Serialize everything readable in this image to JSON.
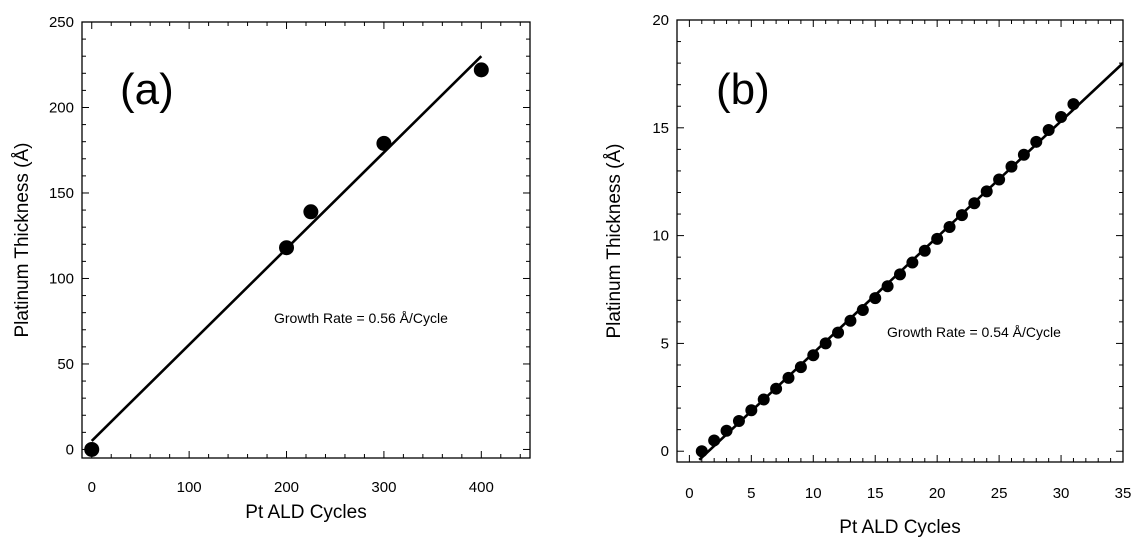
{
  "chart_data": [
    {
      "type": "scatter",
      "panel_label": "(a)",
      "xlabel": "Pt ALD Cycles",
      "ylabel": "Platinum Thickness (Å)",
      "annotation": "Growth Rate = 0.56 Å/Cycle",
      "xlim": [
        -10,
        450
      ],
      "ylim": [
        -5,
        250
      ],
      "xticks": [
        0,
        100,
        200,
        300,
        400
      ],
      "yticks": [
        0,
        50,
        100,
        150,
        200,
        250
      ],
      "grid": false,
      "series": [
        {
          "x": [
            0,
            200,
            225,
            300,
            400
          ],
          "y": [
            0,
            118,
            139,
            179,
            222
          ]
        }
      ],
      "fit_line": {
        "x": [
          0,
          400
        ],
        "y": [
          5,
          230
        ]
      }
    },
    {
      "type": "scatter",
      "panel_label": "(b)",
      "xlabel": "Pt ALD Cycles",
      "ylabel": "Platinum Thickness (Å)",
      "annotation": "Growth Rate = 0.54 Å/Cycle",
      "xlim": [
        -1,
        35
      ],
      "ylim": [
        -0.5,
        20
      ],
      "xticks": [
        0,
        5,
        10,
        15,
        20,
        25,
        30,
        35
      ],
      "yticks": [
        0,
        5,
        10,
        15,
        20
      ],
      "grid": false,
      "series": [
        {
          "x": [
            1,
            2,
            3,
            4,
            5,
            6,
            7,
            8,
            9,
            10,
            11,
            12,
            13,
            14,
            15,
            16,
            17,
            18,
            19,
            20,
            21,
            22,
            23,
            24,
            25,
            26,
            27,
            28,
            29,
            30,
            31
          ],
          "y": [
            0.0,
            0.5,
            0.95,
            1.4,
            1.9,
            2.4,
            2.9,
            3.4,
            3.9,
            4.45,
            5.0,
            5.5,
            6.05,
            6.55,
            7.1,
            7.65,
            8.2,
            8.75,
            9.3,
            9.85,
            10.4,
            10.95,
            11.5,
            12.05,
            12.6,
            13.2,
            13.75,
            14.35,
            14.9,
            15.5,
            16.1
          ]
        }
      ],
      "fit_line": {
        "x": [
          0.8,
          35
        ],
        "y": [
          -0.4,
          18
        ]
      }
    }
  ]
}
